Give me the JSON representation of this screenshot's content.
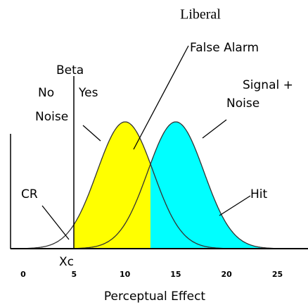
{
  "title": "Liberal",
  "labels": {
    "beta": "Beta",
    "no": "No",
    "yes": "Yes",
    "noise": "Noise",
    "false_alarm": "False Alarm",
    "signal_line1": "Signal +",
    "signal_line2": "Noise",
    "cr": "CR",
    "hit": "Hit",
    "criterion": "Xc"
  },
  "x_axis": {
    "ticks": [
      "0",
      "5",
      "10",
      "15",
      "20",
      "25"
    ],
    "label": "Perceptual Effect"
  }
}
